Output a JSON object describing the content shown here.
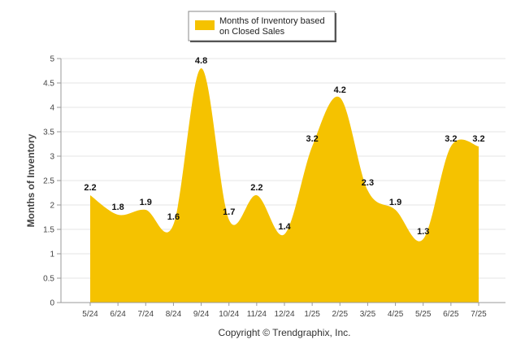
{
  "chart_data": {
    "type": "area",
    "categories": [
      "5/24",
      "6/24",
      "7/24",
      "8/24",
      "9/24",
      "10/24",
      "11/24",
      "12/24",
      "1/25",
      "2/25",
      "3/25",
      "4/25",
      "5/25",
      "6/25",
      "7/25"
    ],
    "series": [
      {
        "name_lines": [
          "Months of Inventory based",
          "on Closed Sales"
        ],
        "values": [
          2.2,
          1.8,
          1.9,
          1.6,
          4.8,
          1.7,
          2.2,
          1.4,
          3.2,
          4.2,
          2.3,
          1.9,
          1.3,
          3.2,
          3.2
        ],
        "color": "#F5C200"
      }
    ],
    "ylabel": "Months of Inventory",
    "xlabel": "",
    "ylim": [
      0,
      5
    ],
    "yticks": [
      "0",
      "0.5",
      "1",
      "1.5",
      "2",
      "2.5",
      "3",
      "3.5",
      "4",
      "4.5",
      "5"
    ],
    "grid": true,
    "legend_position": "top-center",
    "footer": "Copyright © Trendgraphix, Inc."
  }
}
